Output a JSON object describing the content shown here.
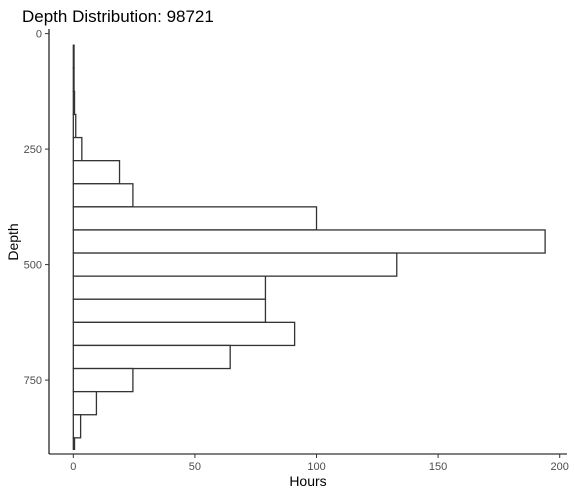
{
  "chart_data": {
    "type": "bar",
    "orientation": "horizontal",
    "title": "Depth Distribution: 98721",
    "xlabel": "Hours",
    "ylabel": "Depth",
    "xlim": [
      -10,
      203
    ],
    "ylim": [
      -10,
      910
    ],
    "y_reversed": true,
    "x_ticks": [
      0,
      50,
      100,
      150,
      200
    ],
    "y_ticks": [
      0,
      250,
      500,
      750
    ],
    "bin_width": 50,
    "bins": [
      {
        "y0": 25,
        "y1": 75,
        "value": 0.3
      },
      {
        "y0": 75,
        "y1": 125,
        "value": 0.3
      },
      {
        "y0": 125,
        "y1": 175,
        "value": 0.5
      },
      {
        "y0": 175,
        "y1": 225,
        "value": 1
      },
      {
        "y0": 225,
        "y1": 275,
        "value": 3.5
      },
      {
        "y0": 275,
        "y1": 325,
        "value": 19
      },
      {
        "y0": 325,
        "y1": 375,
        "value": 24.5
      },
      {
        "y0": 375,
        "y1": 425,
        "value": 100
      },
      {
        "y0": 425,
        "y1": 475,
        "value": 194
      },
      {
        "y0": 475,
        "y1": 525,
        "value": 133
      },
      {
        "y0": 525,
        "y1": 575,
        "value": 79
      },
      {
        "y0": 575,
        "y1": 625,
        "value": 79
      },
      {
        "y0": 625,
        "y1": 675,
        "value": 91
      },
      {
        "y0": 675,
        "y1": 725,
        "value": 64.5
      },
      {
        "y0": 725,
        "y1": 775,
        "value": 24.5
      },
      {
        "y0": 775,
        "y1": 825,
        "value": 9.5
      },
      {
        "y0": 825,
        "y1": 875,
        "value": 3
      },
      {
        "y0": 875,
        "y1": 900,
        "value": 0.5
      }
    ],
    "grid": false,
    "legend": "none"
  }
}
